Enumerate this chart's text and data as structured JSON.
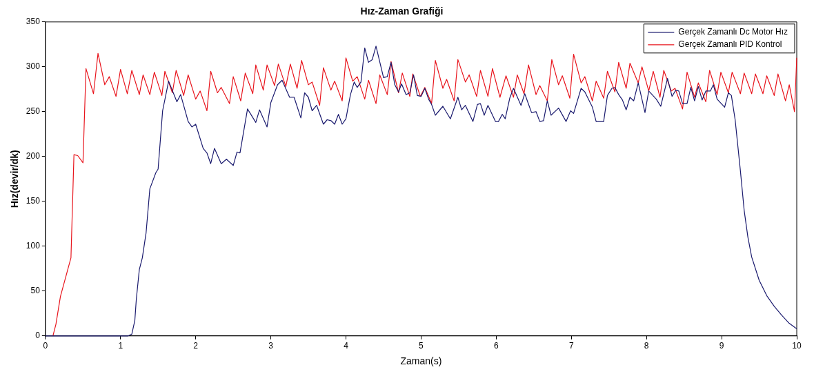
{
  "chart_data": {
    "type": "line",
    "title": "Hız-Zaman Grafiği",
    "xlabel": "Zaman(s)",
    "ylabel": "Hız(devir/dk)",
    "xlim": [
      0,
      10
    ],
    "xticks": [
      0,
      1,
      2,
      3,
      4,
      5,
      6,
      7,
      8,
      9,
      10
    ],
    "ylim": [
      0,
      350
    ],
    "yticks": [
      0,
      50,
      100,
      150,
      200,
      250,
      300,
      350
    ],
    "legend": "top right",
    "marker": "none",
    "line_style": "solid",
    "series": [
      {
        "name": "Gerçek Zamanlı Dc Motor Hız",
        "color": "#1a1a6e",
        "x": [
          0,
          1.1,
          1.15,
          1.19,
          1.21,
          1.25,
          1.29,
          1.34,
          1.39,
          1.47,
          1.5,
          1.56,
          1.64,
          1.75,
          1.8,
          1.9,
          1.95,
          2.0,
          2.1,
          2.15,
          2.2,
          2.25,
          2.34,
          2.41,
          2.5,
          2.55,
          2.59,
          2.69,
          2.8,
          2.85,
          2.95,
          3.0,
          3.09,
          3.15,
          3.25,
          3.31,
          3.4,
          3.45,
          3.5,
          3.55,
          3.61,
          3.7,
          3.75,
          3.8,
          3.85,
          3.9,
          3.95,
          4.0,
          4.06,
          4.11,
          4.15,
          4.2,
          4.25,
          4.3,
          4.35,
          4.4,
          4.5,
          4.55,
          4.6,
          4.65,
          4.7,
          4.74,
          4.8,
          4.85,
          4.9,
          4.95,
          5.0,
          5.05,
          5.1,
          5.14,
          5.19,
          5.29,
          5.39,
          5.49,
          5.54,
          5.59,
          5.69,
          5.75,
          5.79,
          5.84,
          5.89,
          5.99,
          6.03,
          6.08,
          6.12,
          6.18,
          6.23,
          6.33,
          6.38,
          6.47,
          6.53,
          6.58,
          6.63,
          6.68,
          6.73,
          6.83,
          6.93,
          6.99,
          7.03,
          7.13,
          7.18,
          7.28,
          7.33,
          7.43,
          7.48,
          7.54,
          7.58,
          7.63,
          7.68,
          7.73,
          7.78,
          7.83,
          7.89,
          7.98,
          8.03,
          8.13,
          8.19,
          8.28,
          8.34,
          8.39,
          8.43,
          8.48,
          8.54,
          8.59,
          8.64,
          8.69,
          8.74,
          8.79,
          8.85,
          8.89,
          8.94,
          9.04,
          9.09,
          9.13,
          9.18,
          9.25,
          9.3,
          9.35,
          9.4,
          9.5,
          9.6,
          9.7,
          9.8,
          9.9,
          10
        ],
        "values": [
          0,
          0,
          2,
          17,
          41,
          74,
          87,
          115,
          164,
          182,
          186,
          251,
          284,
          261,
          269,
          239,
          233,
          236,
          209,
          204,
          192,
          209,
          192,
          197,
          190,
          205,
          204,
          253,
          238,
          252,
          233,
          260,
          280,
          285,
          266,
          266,
          243,
          271,
          266,
          251,
          257,
          236,
          241,
          240,
          236,
          247,
          236,
          242,
          269,
          283,
          277,
          283,
          321,
          305,
          308,
          323,
          288,
          289,
          305,
          280,
          272,
          281,
          269,
          271,
          291,
          268,
          267,
          276,
          264,
          258,
          246,
          256,
          242,
          266,
          252,
          257,
          239,
          258,
          259,
          246,
          257,
          239,
          239,
          247,
          242,
          265,
          276,
          257,
          270,
          249,
          250,
          239,
          240,
          262,
          246,
          254,
          239,
          251,
          248,
          276,
          272,
          255,
          239,
          239,
          268,
          276,
          277,
          269,
          263,
          252,
          266,
          262,
          282,
          249,
          273,
          264,
          256,
          287,
          267,
          274,
          273,
          259,
          259,
          277,
          262,
          278,
          263,
          273,
          273,
          280,
          264,
          255,
          271,
          268,
          241,
          184,
          140,
          110,
          88,
          62,
          45,
          33,
          23,
          14,
          8
        ]
      },
      {
        "name": "Gerçek Zamanlı PID Kontrol",
        "color": "#e8141c",
        "x": [
          0.1,
          0.14,
          0.2,
          0.34,
          0.38,
          0.43,
          0.5,
          0.54,
          0.64,
          0.7,
          0.79,
          0.85,
          0.94,
          1.0,
          1.09,
          1.15,
          1.25,
          1.3,
          1.39,
          1.45,
          1.55,
          1.59,
          1.69,
          1.74,
          1.84,
          1.9,
          2.0,
          2.06,
          2.15,
          2.2,
          2.29,
          2.34,
          2.45,
          2.5,
          2.6,
          2.66,
          2.76,
          2.8,
          2.9,
          2.95,
          3.05,
          3.1,
          3.2,
          3.26,
          3.35,
          3.41,
          3.5,
          3.55,
          3.65,
          3.7,
          3.8,
          3.85,
          3.95,
          4.0,
          4.09,
          4.15,
          4.25,
          4.3,
          4.4,
          4.45,
          4.55,
          4.6,
          4.7,
          4.75,
          4.85,
          4.89,
          4.99,
          5.05,
          5.14,
          5.19,
          5.29,
          5.34,
          5.44,
          5.49,
          5.59,
          5.64,
          5.74,
          5.79,
          5.89,
          5.95,
          6.05,
          6.13,
          6.23,
          6.28,
          6.37,
          6.43,
          6.53,
          6.58,
          6.68,
          6.74,
          6.83,
          6.88,
          6.98,
          7.03,
          7.13,
          7.18,
          7.28,
          7.33,
          7.43,
          7.48,
          7.58,
          7.63,
          7.73,
          7.78,
          7.89,
          7.94,
          8.03,
          8.09,
          8.18,
          8.23,
          8.33,
          8.38,
          8.48,
          8.54,
          8.64,
          8.69,
          8.79,
          8.84,
          8.94,
          8.99,
          9.09,
          9.14,
          9.25,
          9.3,
          9.4,
          9.45,
          9.55,
          9.6,
          9.7,
          9.75,
          9.85,
          9.9,
          9.97,
          10
        ],
        "values": [
          0,
          13,
          44,
          87,
          202,
          201,
          193,
          298,
          270,
          315,
          280,
          289,
          267,
          297,
          270,
          296,
          269,
          291,
          269,
          294,
          268,
          295,
          271,
          296,
          268,
          291,
          264,
          273,
          251,
          295,
          271,
          277,
          259,
          289,
          262,
          293,
          270,
          302,
          274,
          302,
          279,
          303,
          278,
          303,
          276,
          307,
          280,
          283,
          257,
          299,
          274,
          284,
          262,
          310,
          284,
          289,
          264,
          285,
          259,
          291,
          269,
          306,
          271,
          293,
          267,
          292,
          267,
          277,
          259,
          307,
          276,
          286,
          262,
          308,
          283,
          291,
          267,
          296,
          267,
          298,
          266,
          290,
          266,
          291,
          270,
          302,
          269,
          279,
          262,
          308,
          280,
          290,
          265,
          314,
          282,
          289,
          262,
          284,
          265,
          295,
          272,
          305,
          276,
          304,
          282,
          300,
          273,
          295,
          266,
          296,
          273,
          276,
          253,
          294,
          266,
          282,
          261,
          296,
          269,
          294,
          271,
          294,
          270,
          293,
          270,
          292,
          270,
          290,
          268,
          292,
          262,
          280,
          250,
          310
        ]
      }
    ]
  }
}
